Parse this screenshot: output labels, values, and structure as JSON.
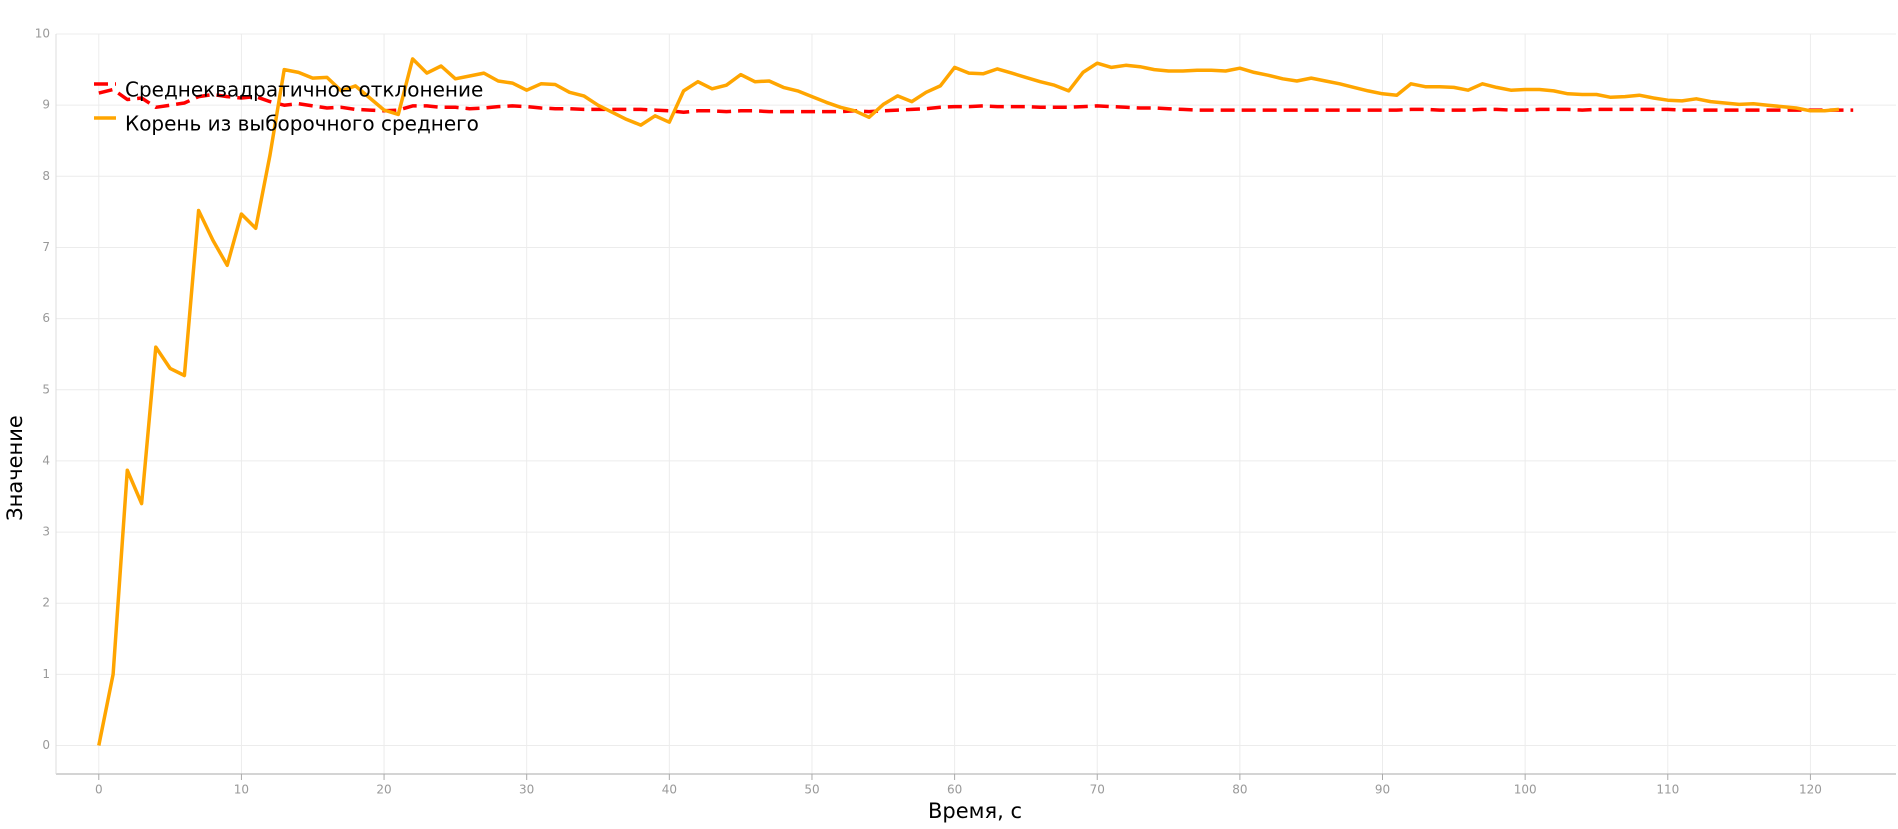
{
  "chart_data": {
    "type": "line",
    "xlabel": "Время, с",
    "ylabel": "Значение",
    "x": [
      0,
      1,
      2,
      3,
      4,
      5,
      6,
      7,
      8,
      9,
      10,
      11,
      12,
      13,
      14,
      15,
      16,
      17,
      18,
      19,
      20,
      21,
      22,
      23,
      24,
      25,
      26,
      27,
      28,
      29,
      30,
      31,
      32,
      33,
      34,
      35,
      36,
      37,
      38,
      39,
      40,
      41,
      42,
      43,
      44,
      45,
      46,
      47,
      48,
      49,
      50,
      51,
      52,
      53,
      54,
      55,
      56,
      57,
      58,
      59,
      60,
      61,
      62,
      63,
      64,
      65,
      66,
      67,
      68,
      69,
      70,
      71,
      72,
      73,
      74,
      75,
      76,
      77,
      78,
      79,
      80,
      81,
      82,
      83,
      84,
      85,
      86,
      87,
      88,
      89,
      90,
      91,
      92,
      93,
      94,
      95,
      96,
      97,
      98,
      99,
      100,
      101,
      102,
      103,
      104,
      105,
      106,
      107,
      108,
      109,
      110,
      111,
      112,
      113,
      114,
      115,
      116,
      117,
      118,
      119,
      120,
      121,
      122,
      123
    ],
    "series": [
      {
        "name": "Среднеквадратичное отклонение",
        "color": "#ff0000",
        "dashed": true,
        "values": [
          9.17,
          9.22,
          9.08,
          9.1,
          8.97,
          9.0,
          9.03,
          9.12,
          9.15,
          9.12,
          9.1,
          9.12,
          9.05,
          9.0,
          9.02,
          8.99,
          8.96,
          8.97,
          8.94,
          8.93,
          8.92,
          8.93,
          8.99,
          8.99,
          8.97,
          8.97,
          8.95,
          8.96,
          8.98,
          8.99,
          8.98,
          8.96,
          8.95,
          8.95,
          8.94,
          8.94,
          8.94,
          8.94,
          8.94,
          8.93,
          8.92,
          8.9,
          8.92,
          8.92,
          8.91,
          8.92,
          8.92,
          8.91,
          8.91,
          8.91,
          8.91,
          8.91,
          8.91,
          8.92,
          8.91,
          8.92,
          8.93,
          8.94,
          8.95,
          8.97,
          8.98,
          8.98,
          8.99,
          8.98,
          8.98,
          8.98,
          8.97,
          8.97,
          8.97,
          8.98,
          8.99,
          8.98,
          8.97,
          8.96,
          8.96,
          8.95,
          8.94,
          8.93,
          8.93,
          8.93,
          8.93,
          8.93,
          8.93,
          8.93,
          8.93,
          8.93,
          8.93,
          8.93,
          8.93,
          8.93,
          8.93,
          8.93,
          8.94,
          8.94,
          8.93,
          8.93,
          8.93,
          8.94,
          8.94,
          8.93,
          8.93,
          8.94,
          8.94,
          8.94,
          8.93,
          8.94,
          8.94,
          8.94,
          8.94,
          8.94,
          8.94,
          8.93,
          8.93,
          8.93,
          8.93,
          8.93,
          8.93,
          8.93,
          8.93,
          8.93,
          8.93,
          8.93,
          8.93,
          8.93
        ]
      },
      {
        "name": "Корень из выборочного среднего",
        "color": "#ffa500",
        "dashed": false,
        "values": [
          0,
          1.0,
          3.87,
          3.4,
          5.6,
          5.3,
          5.2,
          7.52,
          7.1,
          6.75,
          7.47,
          7.27,
          8.3,
          9.5,
          9.46,
          9.38,
          9.39,
          9.2,
          9.27,
          9.1,
          8.93,
          8.87,
          9.65,
          9.45,
          9.55,
          9.37,
          9.41,
          9.45,
          9.34,
          9.31,
          9.21,
          9.3,
          9.29,
          9.18,
          9.13,
          9.0,
          8.9,
          8.8,
          8.72,
          8.85,
          8.76,
          9.2,
          9.33,
          9.23,
          9.28,
          9.43,
          9.33,
          9.34,
          9.25,
          9.2,
          9.12,
          9.04,
          8.97,
          8.92,
          8.83,
          9.01,
          9.13,
          9.05,
          9.18,
          9.27,
          9.53,
          9.45,
          9.44,
          9.51,
          9.45,
          9.39,
          9.33,
          9.28,
          9.2,
          9.46,
          9.59,
          9.53,
          9.56,
          9.54,
          9.5,
          9.48,
          9.48,
          9.49,
          9.49,
          9.48,
          9.52,
          9.46,
          9.42,
          9.37,
          9.34,
          9.38,
          9.34,
          9.3,
          9.25,
          9.2,
          9.16,
          9.14,
          9.3,
          9.26,
          9.26,
          9.25,
          9.21,
          9.3,
          9.25,
          9.21,
          9.22,
          9.22,
          9.2,
          9.16,
          9.15,
          9.15,
          9.11,
          9.12,
          9.14,
          9.1,
          9.07,
          9.06,
          9.09,
          9.05,
          9.03,
          9.01,
          9.02,
          9.0,
          8.98,
          8.96,
          8.92,
          8.92,
          8.94,
          null
        ]
      }
    ],
    "xlim": [
      -3,
      126
    ],
    "ylim": [
      -0.4,
      10
    ],
    "xticks": [
      0,
      10,
      20,
      30,
      40,
      50,
      60,
      70,
      80,
      90,
      100,
      110,
      120
    ],
    "yticks": [
      0,
      1,
      2,
      3,
      4,
      5,
      6,
      7,
      8,
      9,
      10
    ],
    "grid": true,
    "legend": "upper left"
  }
}
